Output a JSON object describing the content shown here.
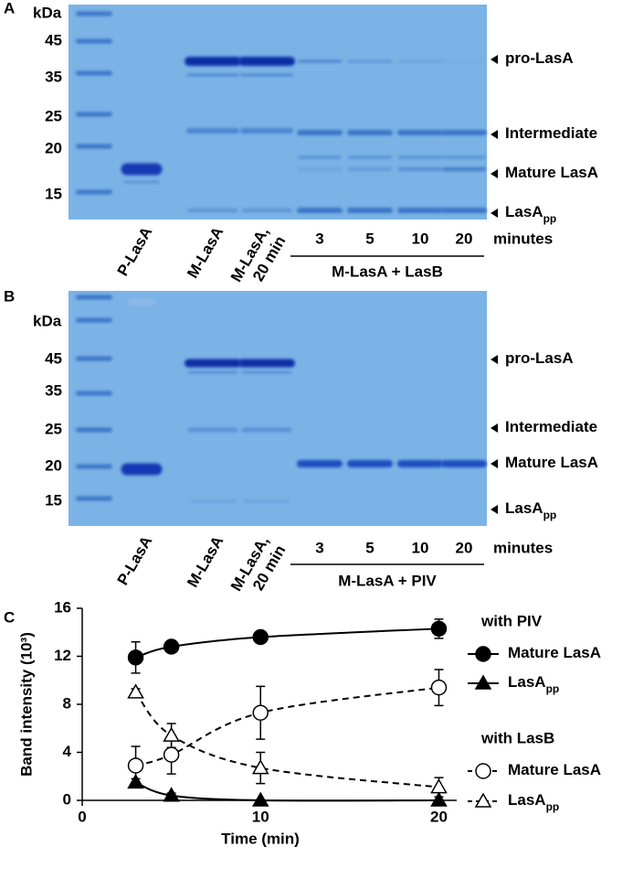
{
  "panels": [
    {
      "letter": "A",
      "unit": "kDa",
      "markers": [
        "45",
        "35",
        "25",
        "20",
        "15"
      ],
      "bands": [
        {
          "text": "pro-LasA"
        },
        {
          "text": "Intermediate"
        },
        {
          "text": "Mature LasA"
        },
        {
          "text": "LasA",
          "sub": "pp"
        }
      ],
      "lanes": [
        [
          "P-LasA"
        ],
        [
          "M-LasA"
        ],
        [
          "M-LasA,",
          "20 min"
        ]
      ],
      "times": [
        "3",
        "5",
        "10",
        "20"
      ],
      "time_unit": "minutes",
      "treatment": "M-LasA + LasB"
    },
    {
      "letter": "B",
      "unit": "kDa",
      "markers": [
        "45",
        "35",
        "25",
        "20",
        "15"
      ],
      "bands": [
        {
          "text": "pro-LasA"
        },
        {
          "text": "Intermediate"
        },
        {
          "text": "Mature LasA"
        },
        {
          "text": "LasA",
          "sub": "pp"
        }
      ],
      "lanes": [
        [
          "P-LasA"
        ],
        [
          "M-LasA"
        ],
        [
          "M-LasA,",
          "20 min"
        ]
      ],
      "times": [
        "3",
        "5",
        "10",
        "20"
      ],
      "time_unit": "minutes",
      "treatment": "M-LasA + PIV"
    }
  ],
  "chart_data": {
    "type": "line",
    "letter": "C",
    "x_label": "Time (min)",
    "y_label": "Band intensity (10³)",
    "x": [
      3,
      5,
      10,
      20
    ],
    "xlim": [
      0,
      21
    ],
    "xticks": [
      0,
      10,
      20
    ],
    "ylim": [
      0,
      16
    ],
    "yticks": [
      0,
      4,
      8,
      12,
      16
    ],
    "groups": [
      {
        "title": "with PIV",
        "series": [
          {
            "name": "Mature LasA",
            "color": "#000000",
            "marker": "circle",
            "filled": true,
            "dashed": false,
            "values": [
              11.9,
              12.8,
              13.6,
              14.3
            ],
            "errors": [
              1.3,
              0.3,
              0.3,
              0.8
            ]
          },
          {
            "name": "LasA",
            "name_sub": "pp",
            "color": "#000000",
            "marker": "triangle",
            "filled": true,
            "dashed": false,
            "values": [
              1.5,
              0.4,
              0,
              0
            ],
            "errors": [
              0.3,
              0.2,
              0,
              0
            ]
          }
        ]
      },
      {
        "title": "with LasB",
        "series": [
          {
            "name": "Mature LasA",
            "color": "#000000",
            "marker": "circle",
            "filled": false,
            "dashed": true,
            "values": [
              2.9,
              3.8,
              7.3,
              9.4
            ],
            "errors": [
              1.6,
              1.6,
              2.2,
              1.5
            ]
          },
          {
            "name": "LasA",
            "name_sub": "pp",
            "color": "#000000",
            "marker": "triangle",
            "filled": false,
            "dashed": true,
            "values": [
              9.0,
              5.4,
              2.7,
              1.1
            ],
            "errors": [
              0.3,
              1.0,
              1.3,
              0.8
            ]
          }
        ]
      }
    ]
  }
}
